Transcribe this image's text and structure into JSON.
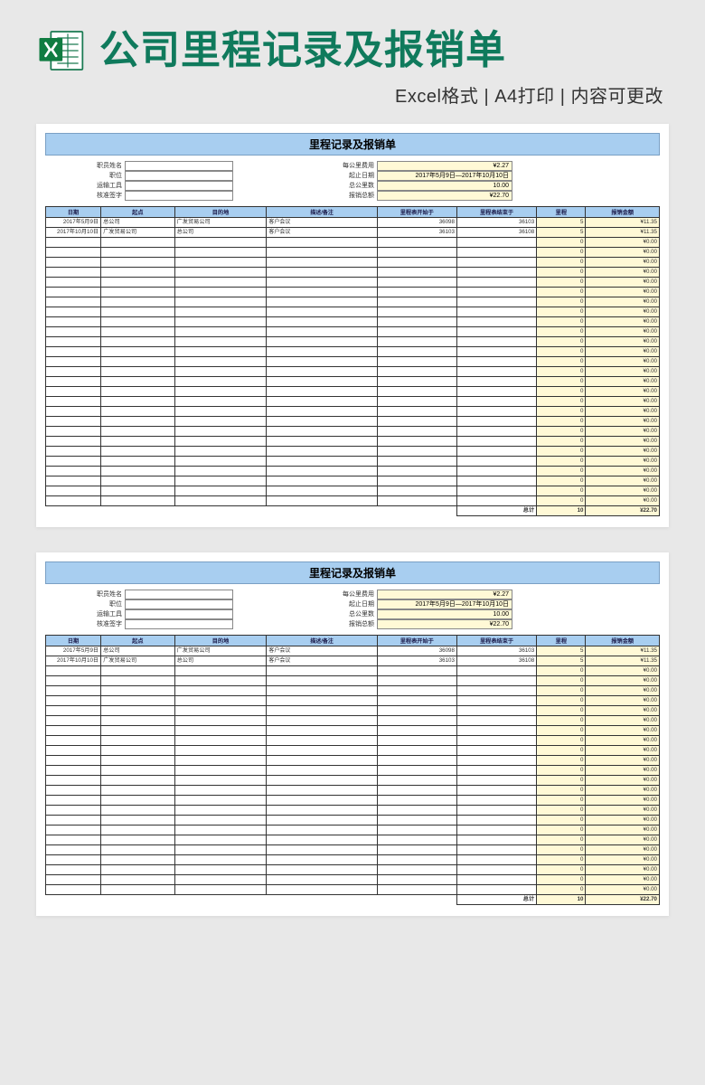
{
  "page": {
    "title": "公司里程记录及报销单",
    "subtitle": "Excel格式 | A4打印 | 内容可更改"
  },
  "colors": {
    "page_bg": "#e8e8e8",
    "sheet_bg": "#ffffff",
    "header_blue": "#a8cef0",
    "highlight_yellow": "#fff9d6",
    "title_green": "#0f7a5c",
    "border": "#333333"
  },
  "sheet": {
    "title": "里程记录及报销单",
    "info_left_labels": [
      "职员姓名",
      "职位",
      "运输工具",
      "核准签字"
    ],
    "info_left_values": [
      "",
      "",
      "",
      ""
    ],
    "info_right_labels": [
      "每公里费用",
      "起止日期",
      "总公里数",
      "报销总额"
    ],
    "info_right_values": [
      "¥2.27",
      "2017年5月9日—2017年10月10日",
      "10.00",
      "¥22.70"
    ],
    "columns": [
      "日期",
      "起点",
      "目的地",
      "描述/备注",
      "里程表开始于",
      "里程表结束于",
      "里程",
      "报销金额"
    ],
    "col_classes": [
      "col-date",
      "col-start",
      "col-dest",
      "col-desc",
      "col-ostart",
      "col-oend",
      "col-miles",
      "col-amt"
    ],
    "rows": [
      [
        "2017年5月9日",
        "总公司",
        "广发贸易公司",
        "客户会议",
        "36098",
        "36103",
        "5",
        "¥11.35"
      ],
      [
        "2017年10月10日",
        "广发贸易公司",
        "总公司",
        "客户会议",
        "36103",
        "36108",
        "5",
        "¥11.35"
      ],
      [
        "",
        "",
        "",
        "",
        "",
        "",
        "0",
        "¥0.00"
      ],
      [
        "",
        "",
        "",
        "",
        "",
        "",
        "0",
        "¥0.00"
      ],
      [
        "",
        "",
        "",
        "",
        "",
        "",
        "0",
        "¥0.00"
      ],
      [
        "",
        "",
        "",
        "",
        "",
        "",
        "0",
        "¥0.00"
      ],
      [
        "",
        "",
        "",
        "",
        "",
        "",
        "0",
        "¥0.00"
      ],
      [
        "",
        "",
        "",
        "",
        "",
        "",
        "0",
        "¥0.00"
      ],
      [
        "",
        "",
        "",
        "",
        "",
        "",
        "0",
        "¥0.00"
      ],
      [
        "",
        "",
        "",
        "",
        "",
        "",
        "0",
        "¥0.00"
      ],
      [
        "",
        "",
        "",
        "",
        "",
        "",
        "0",
        "¥0.00"
      ],
      [
        "",
        "",
        "",
        "",
        "",
        "",
        "0",
        "¥0.00"
      ],
      [
        "",
        "",
        "",
        "",
        "",
        "",
        "0",
        "¥0.00"
      ],
      [
        "",
        "",
        "",
        "",
        "",
        "",
        "0",
        "¥0.00"
      ],
      [
        "",
        "",
        "",
        "",
        "",
        "",
        "0",
        "¥0.00"
      ],
      [
        "",
        "",
        "",
        "",
        "",
        "",
        "0",
        "¥0.00"
      ],
      [
        "",
        "",
        "",
        "",
        "",
        "",
        "0",
        "¥0.00"
      ],
      [
        "",
        "",
        "",
        "",
        "",
        "",
        "0",
        "¥0.00"
      ],
      [
        "",
        "",
        "",
        "",
        "",
        "",
        "0",
        "¥0.00"
      ],
      [
        "",
        "",
        "",
        "",
        "",
        "",
        "0",
        "¥0.00"
      ],
      [
        "",
        "",
        "",
        "",
        "",
        "",
        "0",
        "¥0.00"
      ],
      [
        "",
        "",
        "",
        "",
        "",
        "",
        "0",
        "¥0.00"
      ],
      [
        "",
        "",
        "",
        "",
        "",
        "",
        "0",
        "¥0.00"
      ],
      [
        "",
        "",
        "",
        "",
        "",
        "",
        "0",
        "¥0.00"
      ],
      [
        "",
        "",
        "",
        "",
        "",
        "",
        "0",
        "¥0.00"
      ],
      [
        "",
        "",
        "",
        "",
        "",
        "",
        "0",
        "¥0.00"
      ],
      [
        "",
        "",
        "",
        "",
        "",
        "",
        "0",
        "¥0.00"
      ],
      [
        "",
        "",
        "",
        "",
        "",
        "",
        "0",
        "¥0.00"
      ],
      [
        "",
        "",
        "",
        "",
        "",
        "",
        "0",
        "¥0.00"
      ]
    ],
    "footer": {
      "label": "总计",
      "miles": "10",
      "amount": "¥22.70"
    },
    "row_count_preview2": 25
  }
}
